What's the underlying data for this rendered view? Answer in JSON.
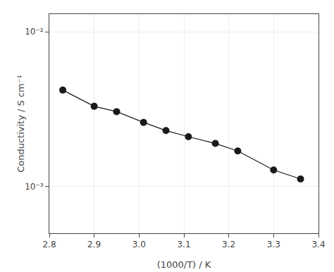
{
  "chart_data": {
    "type": "line",
    "xlabel": "(1000/T) / K",
    "ylabel": "Conductivity / S cm⁻¹",
    "x": [
      2.83,
      2.9,
      2.95,
      3.01,
      3.06,
      3.11,
      3.17,
      3.22,
      3.3,
      3.36
    ],
    "values": [
      0.0042,
      0.0033,
      0.00305,
      0.0026,
      0.0023,
      0.0021,
      0.0019,
      0.0017,
      0.00128,
      0.00112
    ],
    "color": "#1a1a1a",
    "marker": "circle",
    "log": "y",
    "grid": true,
    "xlim": [
      2.8,
      3.4
    ],
    "xticks": [
      2.8,
      2.9,
      {
        "value": 3.0,
        "label": "3.0"
      },
      3.1,
      3.2,
      3.3,
      3.4
    ],
    "ylim": [
      0.0005,
      0.013
    ],
    "yticks": [
      {
        "value": 0.001,
        "label": "10⁻³"
      },
      {
        "value": 0.01,
        "label": "10⁻²"
      }
    ]
  }
}
